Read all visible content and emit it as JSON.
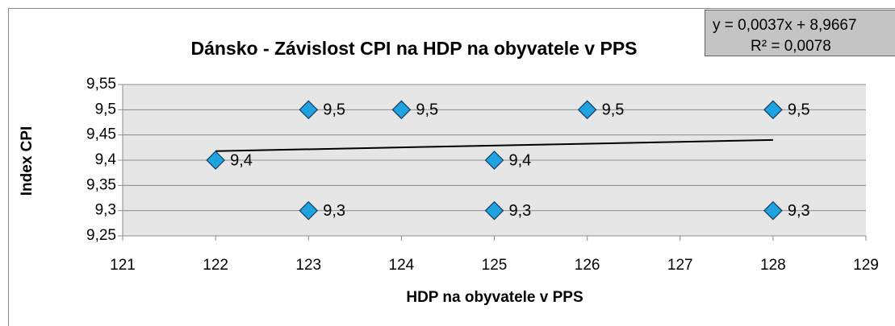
{
  "chart_data": {
    "type": "scatter",
    "title": "Dánsko - Závislost CPI na HDP na obyvatele v PPS",
    "x_label": "HDP na obyvatele v PPS",
    "y_label": "Index CPI",
    "annotations": [
      "y = 0,0037x + 8,9667",
      "R² = 0,0078"
    ],
    "x": [
      122,
      123,
      123,
      124,
      125,
      125,
      126,
      128,
      128
    ],
    "values": [
      9.4,
      9.5,
      9.3,
      9.5,
      9.4,
      9.3,
      9.5,
      9.5,
      9.3
    ],
    "value_labels": [
      "9,4",
      "9,5",
      "9,3",
      "9,5",
      "9,4",
      "9,3",
      "9,5",
      "9,5",
      "9,3"
    ],
    "color": "#1fa3e0",
    "trendline": {
      "x": [
        122,
        128
      ],
      "values": [
        9.418,
        9.44
      ],
      "color": "#000000"
    },
    "xlim": [
      121,
      129
    ],
    "xticks": [
      121,
      122,
      123,
      124,
      125,
      126,
      127,
      128,
      129
    ],
    "ylim": [
      9.25,
      9.55
    ],
    "yticks": [
      {
        "value": 9.25,
        "label": "9,25"
      },
      {
        "value": 9.3,
        "label": "9,3"
      },
      {
        "value": 9.35,
        "label": "9,35"
      },
      {
        "value": 9.4,
        "label": "9,4"
      },
      {
        "value": 9.45,
        "label": "9,45"
      },
      {
        "value": 9.5,
        "label": "9,5"
      },
      {
        "value": 9.55,
        "label": "9,55"
      }
    ],
    "grid": true
  }
}
